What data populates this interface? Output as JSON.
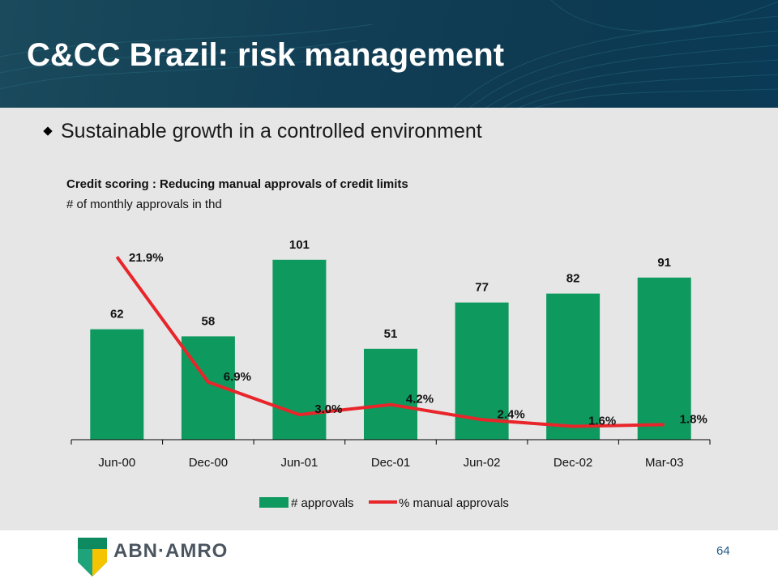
{
  "slide": {
    "title": "C&CC Brazil: risk management",
    "bullet": "Sustainable growth in a controlled environment",
    "page_number": "64"
  },
  "brand": {
    "logo_text": "ABN·AMRO",
    "accent_green": "#0e9a5e",
    "accent_red": "#e8252a"
  },
  "chart_data": {
    "type": "bar",
    "title": "Credit scoring : Reducing manual approvals of credit limits",
    "subtitle": "# of monthly approvals in thd",
    "categories": [
      "Jun-00",
      "Dec-00",
      "Jun-01",
      "Dec-01",
      "Jun-02",
      "Dec-02",
      "Mar-03"
    ],
    "series": [
      {
        "name": "# approvals",
        "type": "bar",
        "values": [
          62,
          58,
          101,
          51,
          77,
          82,
          91
        ],
        "labels": [
          "62",
          "58",
          "101",
          "51",
          "77",
          "82",
          "91"
        ],
        "color": "#0e9a5e"
      },
      {
        "name": "% manual approvals",
        "type": "line",
        "values": [
          21.9,
          6.9,
          3.0,
          4.2,
          2.4,
          1.6,
          1.8
        ],
        "labels": [
          "21.9%",
          "6.9%",
          "3.0%",
          "4.2%",
          "2.4%",
          "1.6%",
          "1.8%"
        ],
        "color": "#e8252a"
      }
    ],
    "legend": "bottom",
    "grid": false
  }
}
